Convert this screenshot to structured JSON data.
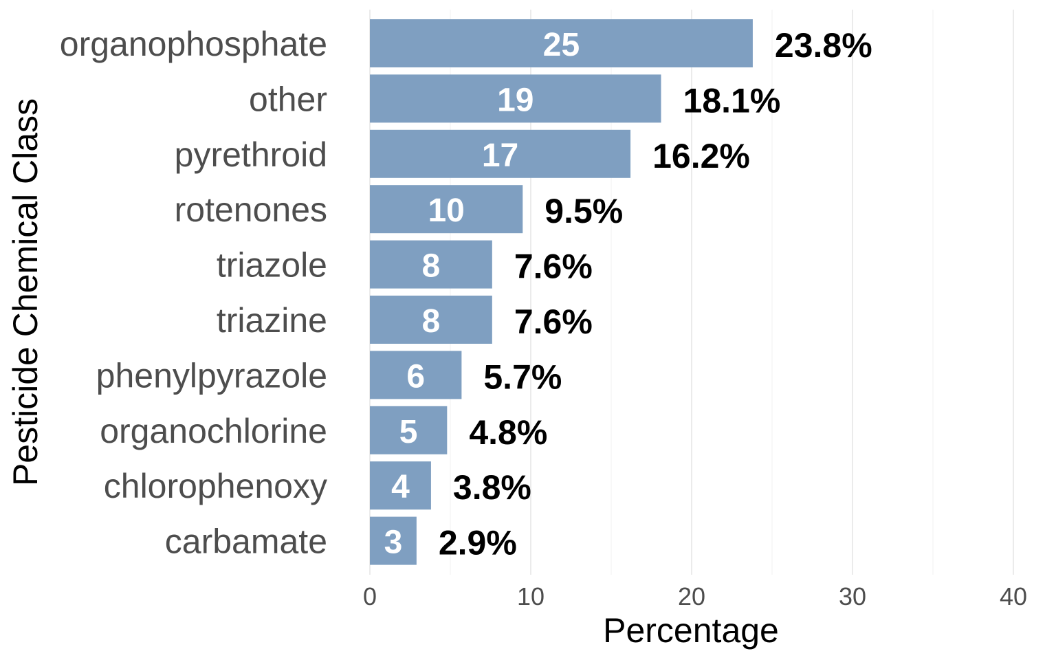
{
  "chart_data": {
    "type": "bar",
    "orientation": "horizontal",
    "xlabel": "Percentage",
    "ylabel": "Pesticide Chemical Class",
    "xlim": [
      0,
      40
    ],
    "xticks": [
      "0",
      "10",
      "20",
      "30",
      "40"
    ],
    "grid": "vertical",
    "bar_color": "#7f9fc1",
    "categories": [
      "organophosphate",
      "other",
      "pyrethroid",
      "rotenones",
      "triazole",
      "triazine",
      "phenylpyrazole",
      "organochlorine",
      "chlorophenoxy",
      "carbamate"
    ],
    "values": [
      23.8,
      18.1,
      16.2,
      9.5,
      7.6,
      7.6,
      5.7,
      4.8,
      3.8,
      2.9
    ],
    "counts": [
      25,
      19,
      17,
      10,
      8,
      8,
      6,
      5,
      4,
      3
    ],
    "percent_labels": [
      "23.8%",
      "18.1%",
      "16.2%",
      "9.5%",
      "7.6%",
      "7.6%",
      "5.7%",
      "4.8%",
      "3.8%",
      "2.9%"
    ]
  }
}
